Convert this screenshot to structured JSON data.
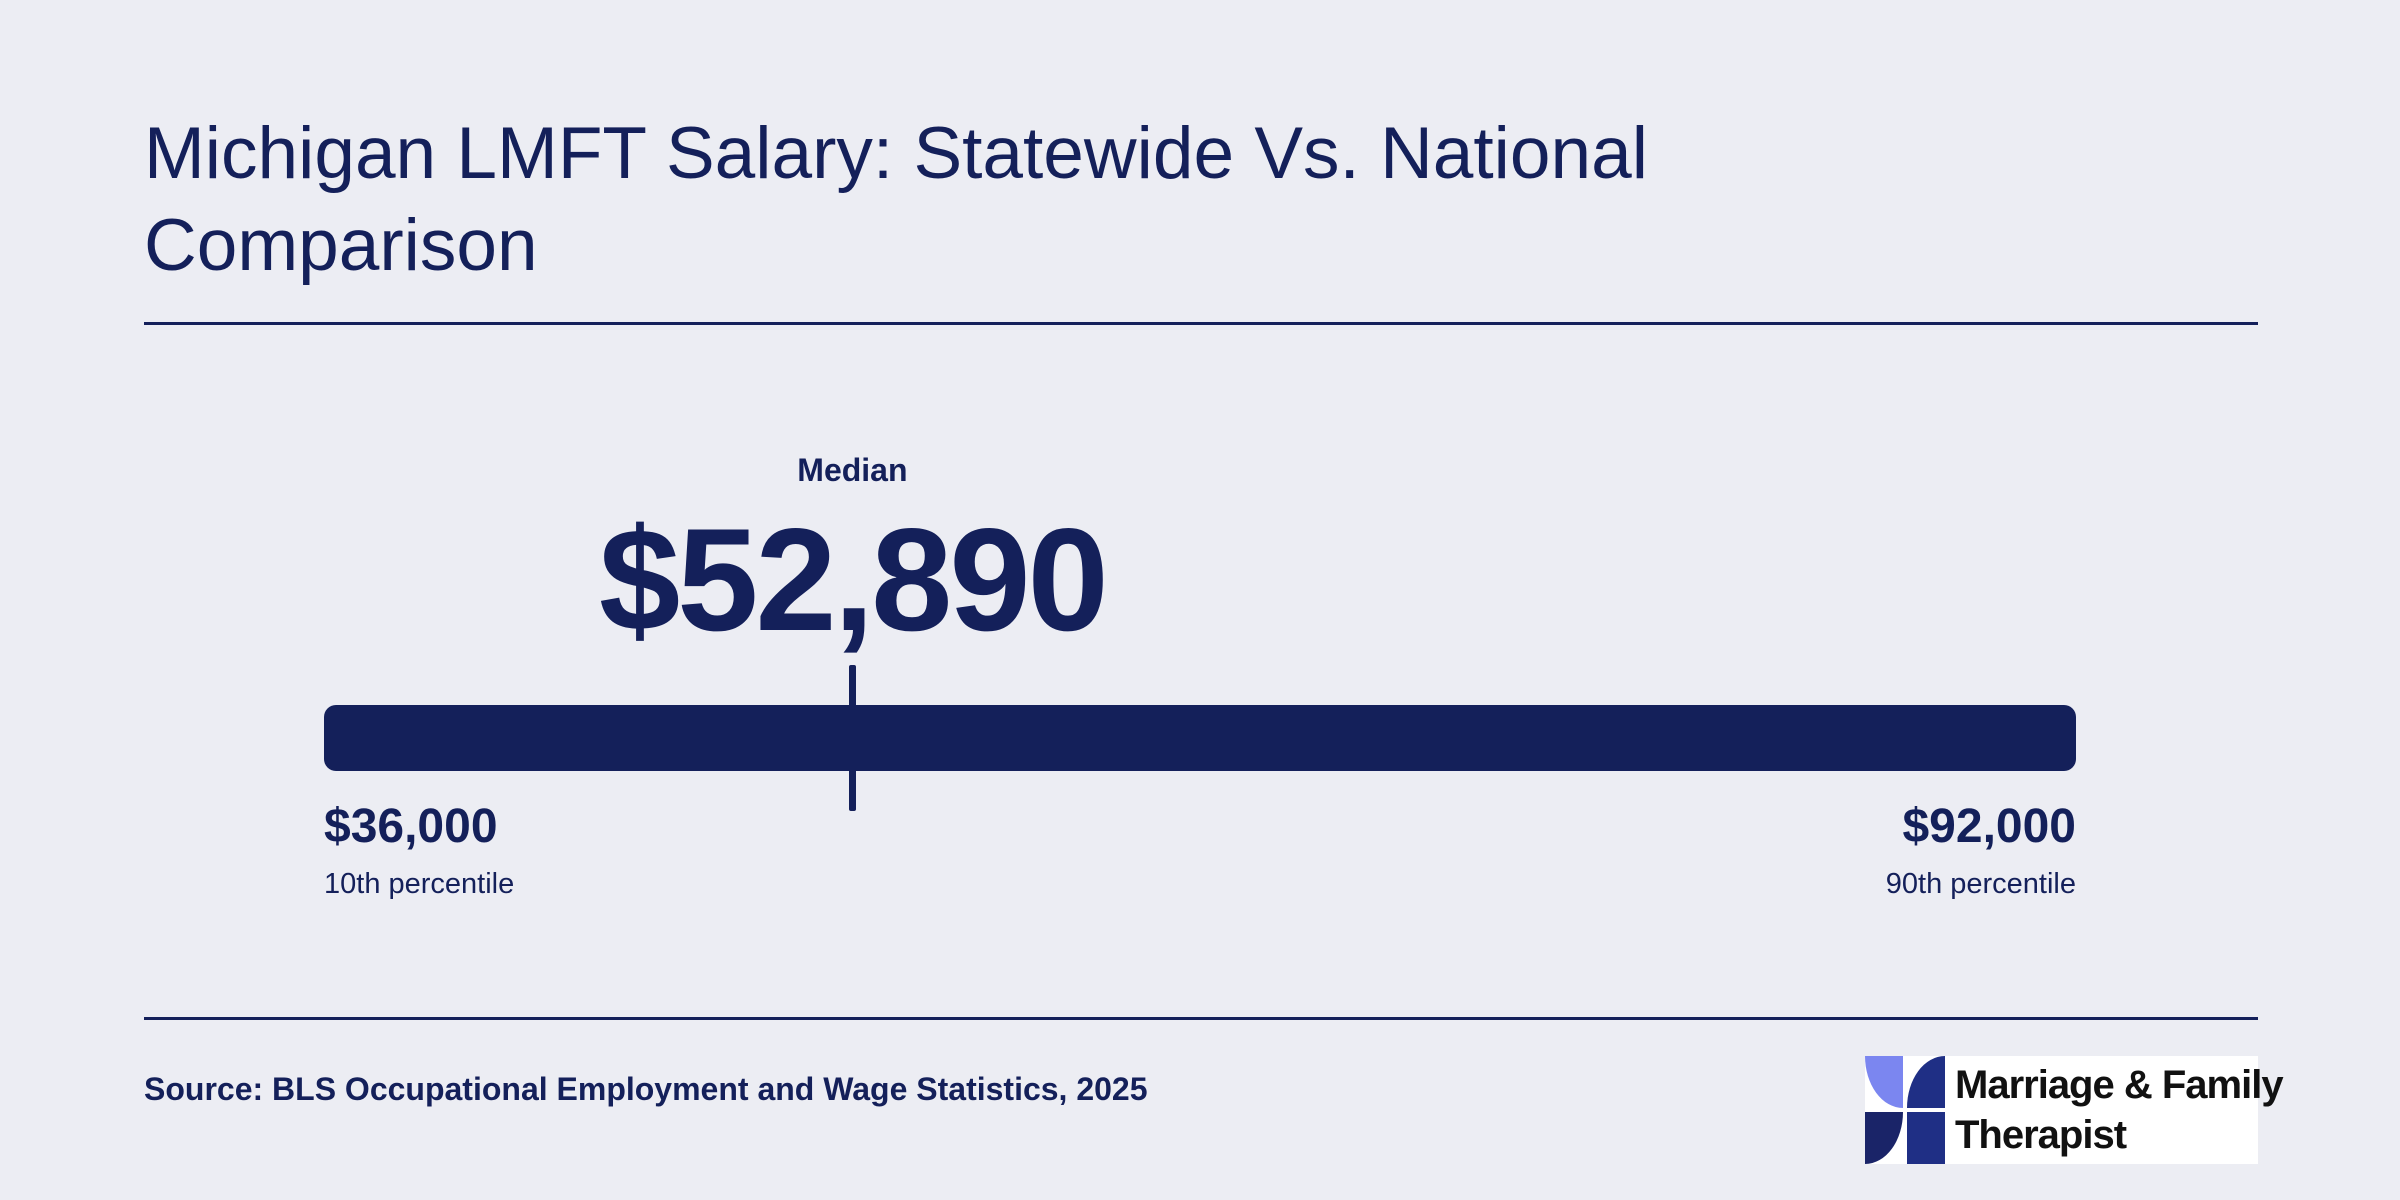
{
  "chart_data": {
    "type": "range",
    "title": "Michigan LMFT Salary: Statewide Vs. National Comparison",
    "min": 36000,
    "max": 92000,
    "median": 52890,
    "median_label": "Median",
    "median_display": "$52,890",
    "low": {
      "value_display": "$36,000",
      "label": "10th percentile"
    },
    "high": {
      "value_display": "$92,000",
      "label": "90th percentile"
    }
  },
  "source": "Source: BLS Occupational Employment and Wage Statistics, 2025",
  "logo": {
    "line1": "Marriage & Family",
    "line2": "Therapist",
    "icon": "pinwheel-logo-icon",
    "colors": {
      "light": "#7b86f0",
      "dark": "#1f2f85",
      "navy": "#1a2468"
    }
  },
  "colors": {
    "background": "#ecedf3",
    "primary": "#14205a"
  }
}
